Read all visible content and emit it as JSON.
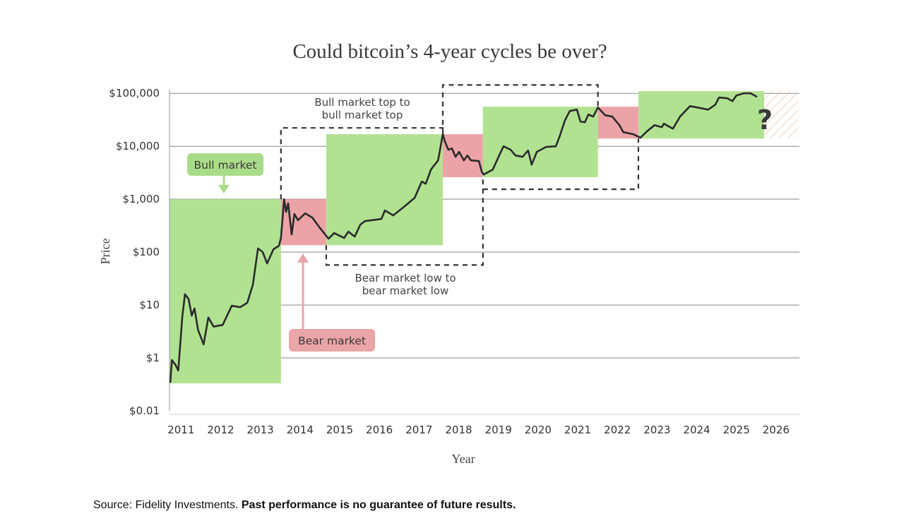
{
  "chart_data": {
    "type": "line",
    "title": "Could bitcoin’s 4-year cycles be over?",
    "xlabel": "Year",
    "ylabel": "Price",
    "y_scale": "log",
    "grid": "horizontal",
    "y_ticks": [
      {
        "label": "$0.01",
        "log_value": -1
      },
      {
        "label": "$1",
        "log_value": 0
      },
      {
        "label": "$10",
        "log_value": 1
      },
      {
        "label": "$100",
        "log_value": 2
      },
      {
        "label": "$1,000",
        "log_value": 3
      },
      {
        "label": "$10,000",
        "log_value": 4
      },
      {
        "label": "$100,000",
        "log_value": 5
      }
    ],
    "x_ticks": [
      "2011",
      "2012",
      "2013",
      "2014",
      "2015",
      "2016",
      "2017",
      "2018",
      "2019",
      "2020",
      "2021",
      "2022",
      "2023",
      "2024",
      "2025",
      "2026"
    ],
    "xlim": [
      2011.21,
      2027.09
    ],
    "ylim_log10": [
      -1,
      5.07
    ],
    "colors": {
      "line": "#2b2b2b",
      "bull": "#b1e291",
      "bear": "#eca3a7",
      "bull_label": "#a9dc88",
      "bear_label": "#eba4a8",
      "hatch": "#e8c4a8",
      "bracket": "#333333",
      "grid": "#888888"
    },
    "series": [
      {
        "points": [
          [
            2011.23,
            0.34
          ],
          [
            2011.27,
            0.91
          ],
          [
            2011.36,
            0.74
          ],
          [
            2011.43,
            0.58
          ],
          [
            2011.5,
            2.8
          ],
          [
            2011.53,
            5.8
          ],
          [
            2011.6,
            16
          ],
          [
            2011.69,
            13
          ],
          [
            2011.77,
            6.3
          ],
          [
            2011.84,
            8.6
          ],
          [
            2011.93,
            3.4
          ],
          [
            2012.07,
            1.8
          ],
          [
            2012.19,
            5.8
          ],
          [
            2012.32,
            3.9
          ],
          [
            2012.55,
            4.2
          ],
          [
            2012.78,
            9.7
          ],
          [
            2012.99,
            9.1
          ],
          [
            2013.17,
            11
          ],
          [
            2013.31,
            24
          ],
          [
            2013.44,
            117
          ],
          [
            2013.56,
            100
          ],
          [
            2013.67,
            61
          ],
          [
            2013.83,
            113
          ],
          [
            2013.97,
            132
          ],
          [
            2014.02,
            185
          ],
          [
            2014.1,
            1000
          ],
          [
            2014.15,
            575
          ],
          [
            2014.2,
            830
          ],
          [
            2014.29,
            215
          ],
          [
            2014.36,
            525
          ],
          [
            2014.45,
            400
          ],
          [
            2014.63,
            540
          ],
          [
            2014.81,
            450
          ],
          [
            2014.99,
            293
          ],
          [
            2015.22,
            179
          ],
          [
            2015.36,
            229
          ],
          [
            2015.61,
            185
          ],
          [
            2015.72,
            244
          ],
          [
            2015.88,
            196
          ],
          [
            2016.02,
            331
          ],
          [
            2016.14,
            386
          ],
          [
            2016.55,
            423
          ],
          [
            2016.64,
            612
          ],
          [
            2016.85,
            494
          ],
          [
            2017.14,
            736
          ],
          [
            2017.39,
            1060
          ],
          [
            2017.57,
            2150
          ],
          [
            2017.67,
            1960
          ],
          [
            2017.8,
            3630
          ],
          [
            2017.98,
            5410
          ],
          [
            2018.1,
            16900
          ],
          [
            2018.15,
            12400
          ],
          [
            2018.24,
            8580
          ],
          [
            2018.33,
            9120
          ],
          [
            2018.42,
            6310
          ],
          [
            2018.51,
            7820
          ],
          [
            2018.63,
            5410
          ],
          [
            2018.72,
            6710
          ],
          [
            2018.81,
            5410
          ],
          [
            2019.01,
            5250
          ],
          [
            2019.08,
            3310
          ],
          [
            2019.13,
            2930
          ],
          [
            2019.36,
            3630
          ],
          [
            2019.52,
            6710
          ],
          [
            2019.63,
            10000
          ],
          [
            2019.81,
            8580
          ],
          [
            2019.93,
            6710
          ],
          [
            2020.11,
            6310
          ],
          [
            2020.25,
            8320
          ],
          [
            2020.34,
            4500
          ],
          [
            2020.47,
            7820
          ],
          [
            2020.7,
            9700
          ],
          [
            2020.95,
            10000
          ],
          [
            2021.05,
            15800
          ],
          [
            2021.18,
            31100
          ],
          [
            2021.3,
            46400
          ],
          [
            2021.48,
            49300
          ],
          [
            2021.57,
            29300
          ],
          [
            2021.68,
            28400
          ],
          [
            2021.77,
            39800
          ],
          [
            2021.89,
            36300
          ],
          [
            2022.01,
            54100
          ],
          [
            2022.19,
            38600
          ],
          [
            2022.37,
            36300
          ],
          [
            2022.55,
            25100
          ],
          [
            2022.65,
            18500
          ],
          [
            2022.9,
            16900
          ],
          [
            2023.08,
            14500
          ],
          [
            2023.26,
            19600
          ],
          [
            2023.44,
            25100
          ],
          [
            2023.62,
            22900
          ],
          [
            2023.67,
            26700
          ],
          [
            2023.9,
            21500
          ],
          [
            2024.08,
            36300
          ],
          [
            2024.33,
            57500
          ],
          [
            2024.51,
            54100
          ],
          [
            2024.79,
            49300
          ],
          [
            2024.97,
            61200
          ],
          [
            2025.06,
            83200
          ],
          [
            2025.27,
            80700
          ],
          [
            2025.4,
            71300
          ],
          [
            2025.5,
            91200
          ],
          [
            2025.68,
            100000
          ],
          [
            2025.86,
            100000
          ],
          [
            2026.02,
            85800
          ]
        ]
      }
    ],
    "regions": [
      {
        "kind": "bull",
        "start": 2011.21,
        "end": 2014.02,
        "low": 0.33,
        "high": 1000
      },
      {
        "kind": "bear",
        "start": 2014.02,
        "end": 2015.16,
        "low": 135,
        "high": 1000
      },
      {
        "kind": "bull",
        "start": 2015.16,
        "end": 2018.1,
        "low": 135,
        "high": 16900
      },
      {
        "kind": "bear",
        "start": 2018.1,
        "end": 2019.11,
        "low": 2600,
        "high": 16900
      },
      {
        "kind": "bull",
        "start": 2019.11,
        "end": 2022.01,
        "low": 2600,
        "high": 56000
      },
      {
        "kind": "bear",
        "start": 2022.01,
        "end": 2023.03,
        "low": 14000,
        "high": 56000
      },
      {
        "kind": "bull",
        "start": 2023.03,
        "end": 2026.2,
        "low": 14000,
        "high": 110000
      },
      {
        "kind": "unknown",
        "start": 2026.2,
        "end": 2027.05,
        "low": 14000,
        "high": 110000
      }
    ],
    "annotations": {
      "top_to_top": [
        "Bull market top to",
        "bull market top"
      ],
      "low_to_low": [
        "Bear market low to",
        "bear market low"
      ],
      "bull_label": "Bull market",
      "bear_label": "Bear market",
      "unknown_mark": "?"
    }
  },
  "source": {
    "prefix": "Source: Fidelity Investments.",
    "disclaimer": "Past performance is no guarantee of future results."
  }
}
